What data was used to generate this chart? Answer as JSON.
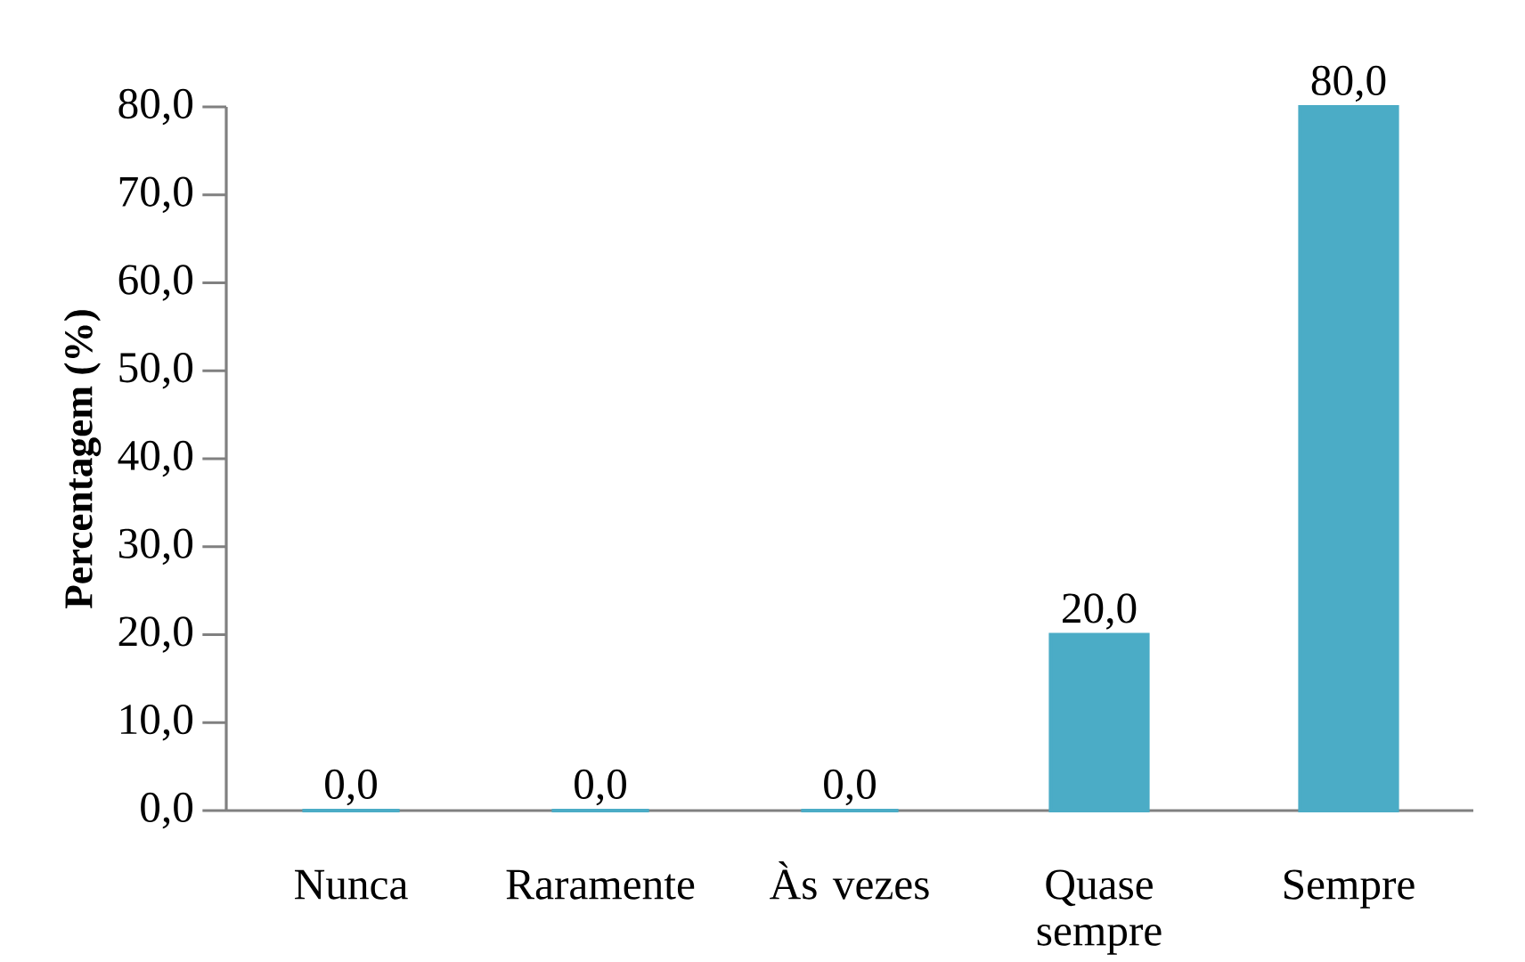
{
  "chart_data": {
    "type": "bar",
    "ylabel": "Percentagem (%)",
    "categories": [
      "Nunca",
      "Raramente",
      "Às vezes",
      "Quase sempre",
      "Sempre"
    ],
    "values": [
      0,
      0,
      0,
      20,
      80
    ],
    "value_labels": [
      "0,0",
      "0,0",
      "0,0",
      "20,0",
      "80,0"
    ],
    "color": "#4bacc6",
    "ylim": [
      0,
      80
    ],
    "yticks": [
      {
        "value": 0,
        "label": "0,0"
      },
      {
        "value": 10,
        "label": "10,0"
      },
      {
        "value": 20,
        "label": "20,0"
      },
      {
        "value": 30,
        "label": "30,0"
      },
      {
        "value": 40,
        "label": "40,0"
      },
      {
        "value": 50,
        "label": "50,0"
      },
      {
        "value": 60,
        "label": "60,0"
      },
      {
        "value": 70,
        "label": "70,0"
      },
      {
        "value": 80,
        "label": "80,0"
      }
    ]
  }
}
